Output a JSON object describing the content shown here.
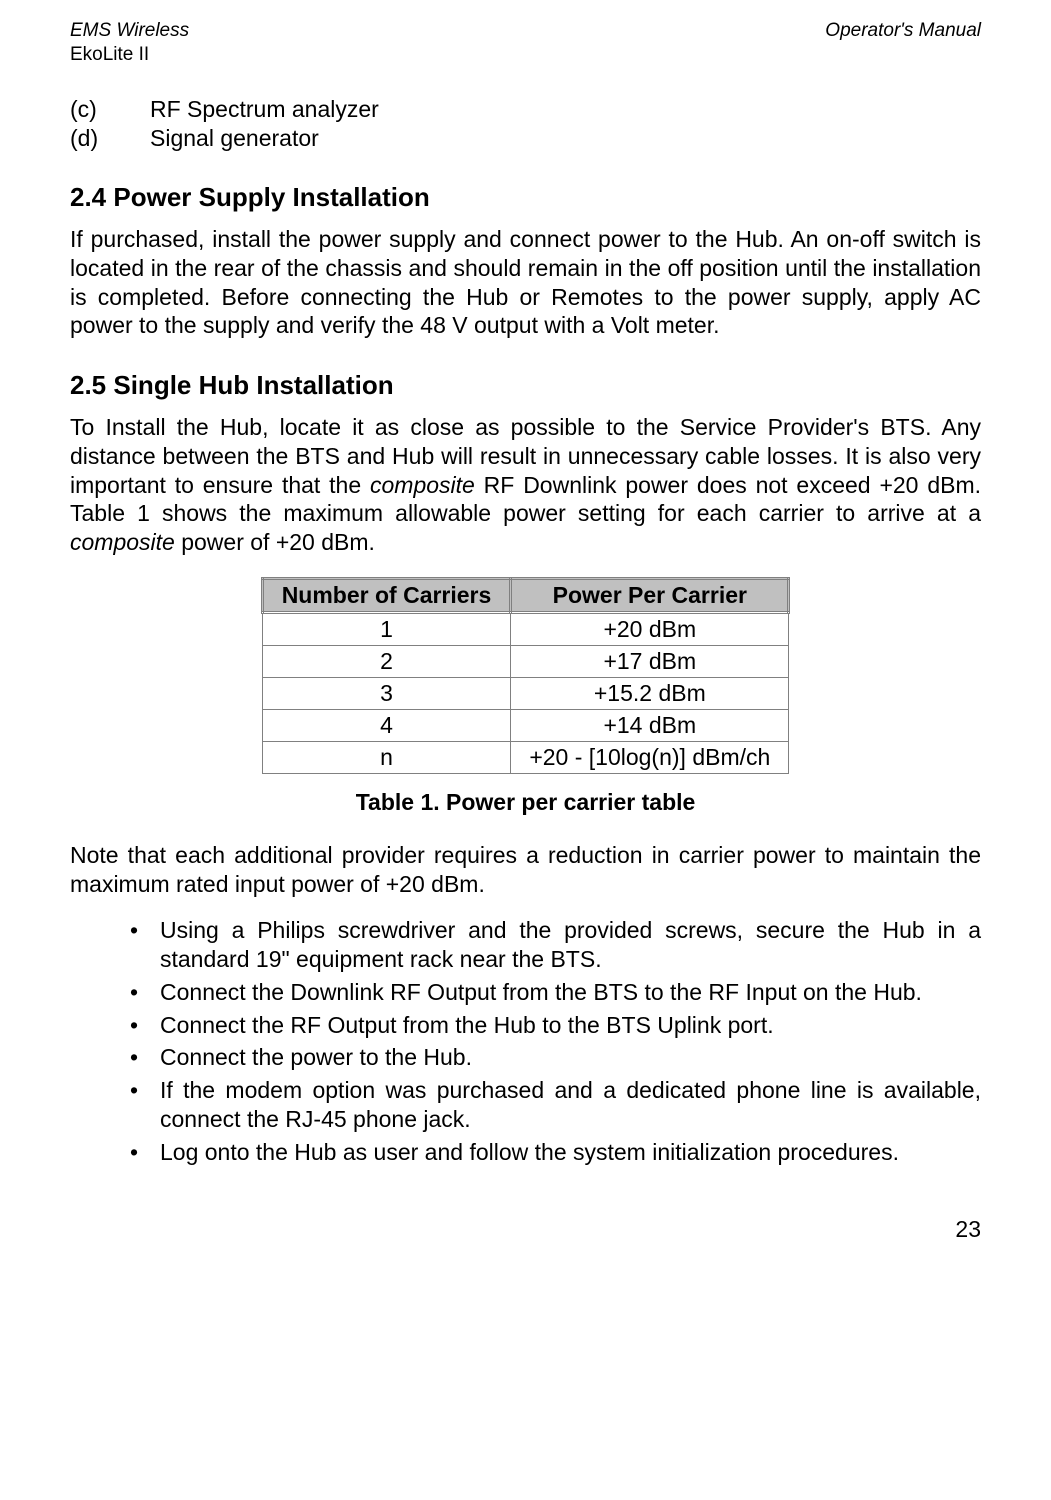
{
  "header": {
    "left_line1": "EMS Wireless",
    "left_line2": "EkoLite II",
    "right": "Operator's Manual"
  },
  "top_list": [
    {
      "marker": "(c)",
      "text": "RF Spectrum analyzer"
    },
    {
      "marker": "(d)",
      "text": "Signal generator"
    }
  ],
  "section_24": {
    "heading": "2.4   Power Supply Installation",
    "body": "If purchased, install the power supply and connect power to the Hub.  An on-off switch is located in the rear of the chassis and should remain in the off position until the installation is completed.  Before connecting the Hub or Remotes to the power supply, apply AC power to the supply and verify the 48 V output with a Volt meter."
  },
  "section_25": {
    "heading": "2.5   Single Hub Installation",
    "body_part1": "To Install the Hub, locate it as close as possible to the Service Provider's BTS.  Any distance between the BTS and Hub will result in unnecessary cable losses.  It is also very important to ensure that the ",
    "body_italic1": "composite",
    "body_part2": " RF Downlink power does not exceed +20 dBm.  Table 1 shows the maximum allowable power setting for each carrier to arrive at a ",
    "body_italic2": "composite",
    "body_part3": " power of +20 dBm."
  },
  "table": {
    "columns": [
      "Number of Carriers",
      "Power Per Carrier"
    ],
    "rows": [
      [
        "1",
        "+20 dBm"
      ],
      [
        "2",
        "+17 dBm"
      ],
      [
        "3",
        "+15.2 dBm"
      ],
      [
        "4",
        "+14 dBm"
      ],
      [
        "n",
        "+20 - [10log(n)] dBm/ch"
      ]
    ],
    "caption": "Table 1.  Power per carrier table",
    "header_bg": "#c0c0c0",
    "border_color": "#808080"
  },
  "note_text": "Note that each additional provider requires a reduction in carrier power to maintain the maximum rated input power of +20 dBm.",
  "bullets": [
    "Using a Philips screwdriver and the provided screws, secure the Hub in a standard 19\" equipment rack near the BTS.",
    "Connect the Downlink RF Output from the BTS to the RF Input on the Hub.",
    "Connect the RF Output from the Hub to the BTS Uplink port.",
    "Connect the power to the Hub.",
    "If the modem option was purchased and a dedicated phone line is available, connect the RJ-45 phone jack.",
    "Log onto the Hub as user and follow the system initialization procedures."
  ],
  "page_number": "23"
}
